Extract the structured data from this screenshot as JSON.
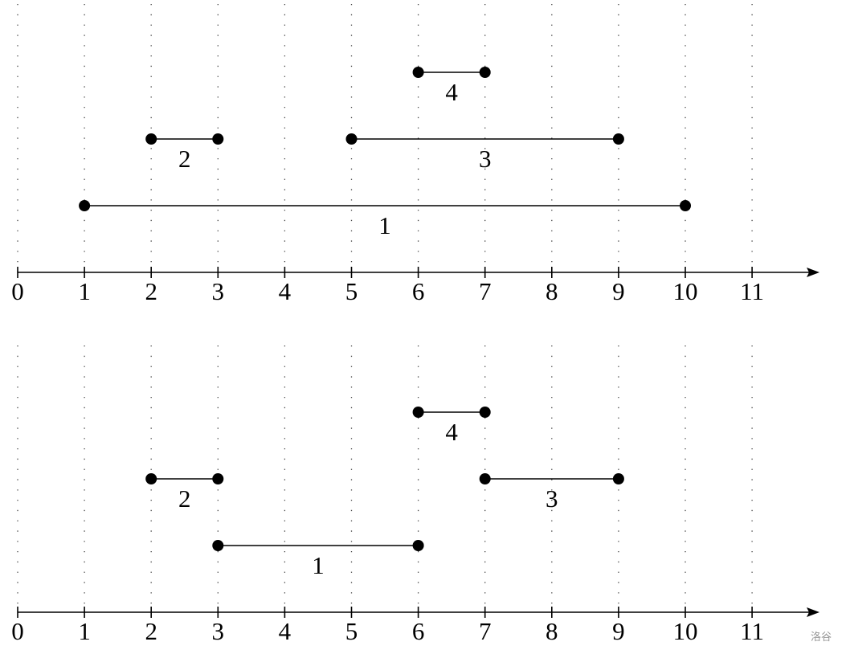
{
  "panels": [
    {
      "ticks": [
        0,
        1,
        2,
        3,
        4,
        5,
        6,
        7,
        8,
        9,
        10,
        11
      ],
      "intervals": [
        {
          "label": "1",
          "start": 1,
          "end": 10
        },
        {
          "label": "2",
          "start": 2,
          "end": 3
        },
        {
          "label": "3",
          "start": 5,
          "end": 9
        },
        {
          "label": "4",
          "start": 6,
          "end": 7
        }
      ]
    },
    {
      "ticks": [
        0,
        1,
        2,
        3,
        4,
        5,
        6,
        7,
        8,
        9,
        10,
        11
      ],
      "intervals": [
        {
          "label": "1",
          "start": 3,
          "end": 6
        },
        {
          "label": "2",
          "start": 2,
          "end": 3
        },
        {
          "label": "3",
          "start": 7,
          "end": 9
        },
        {
          "label": "4",
          "start": 6,
          "end": 7
        }
      ]
    }
  ],
  "watermark": "洛谷"
}
